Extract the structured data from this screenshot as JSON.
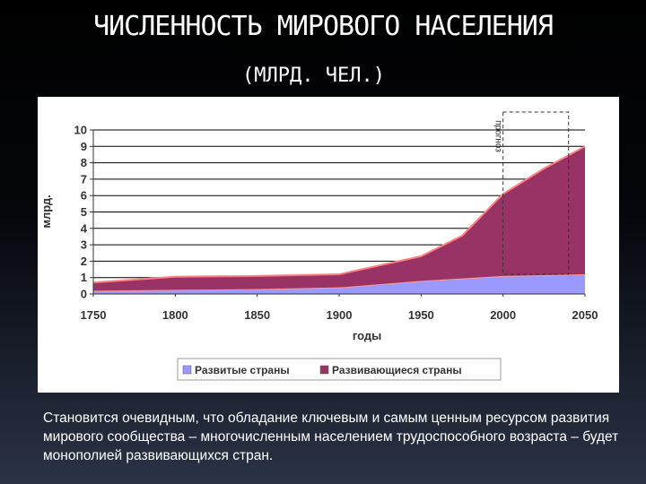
{
  "slide": {
    "title": "ЧИСЛЕННОСТЬ МИРОВОГО НАСЕЛЕНИЯ",
    "subtitle": "(МЛРД. ЧЕЛ.)",
    "caption": "Становится очевидным, что обладание ключевым и самым ценным ресурсом развития мирового сообщества – многочисленным населением трудоспособного возраста – будет монополией развивающихся стран."
  },
  "chart_data": {
    "type": "area",
    "stacked": true,
    "xlabel": "годы",
    "ylabel": "млрд.",
    "xlim": [
      1750,
      2050
    ],
    "ylim": [
      0,
      10
    ],
    "x_ticks": [
      1750,
      1800,
      1850,
      1900,
      1950,
      2000,
      2050
    ],
    "y_ticks": [
      0,
      1,
      2,
      3,
      4,
      5,
      6,
      7,
      8,
      9,
      10
    ],
    "grid": true,
    "legend": "bottom",
    "x": [
      1750,
      1800,
      1850,
      1900,
      1950,
      1975,
      2000,
      2025,
      2050
    ],
    "series": [
      {
        "name": "Развитые страны",
        "color": "#9999ff",
        "values": [
          0.2,
          0.25,
          0.3,
          0.4,
          0.8,
          0.95,
          1.1,
          1.15,
          1.2
        ]
      },
      {
        "name": "Развивающиеся страны",
        "color": "#993366",
        "values": [
          0.5,
          0.8,
          0.8,
          0.8,
          1.5,
          2.6,
          5.0,
          6.5,
          7.8
        ]
      }
    ],
    "forecast": {
      "label": "прогноз",
      "x_range": [
        2000,
        2040
      ]
    }
  }
}
